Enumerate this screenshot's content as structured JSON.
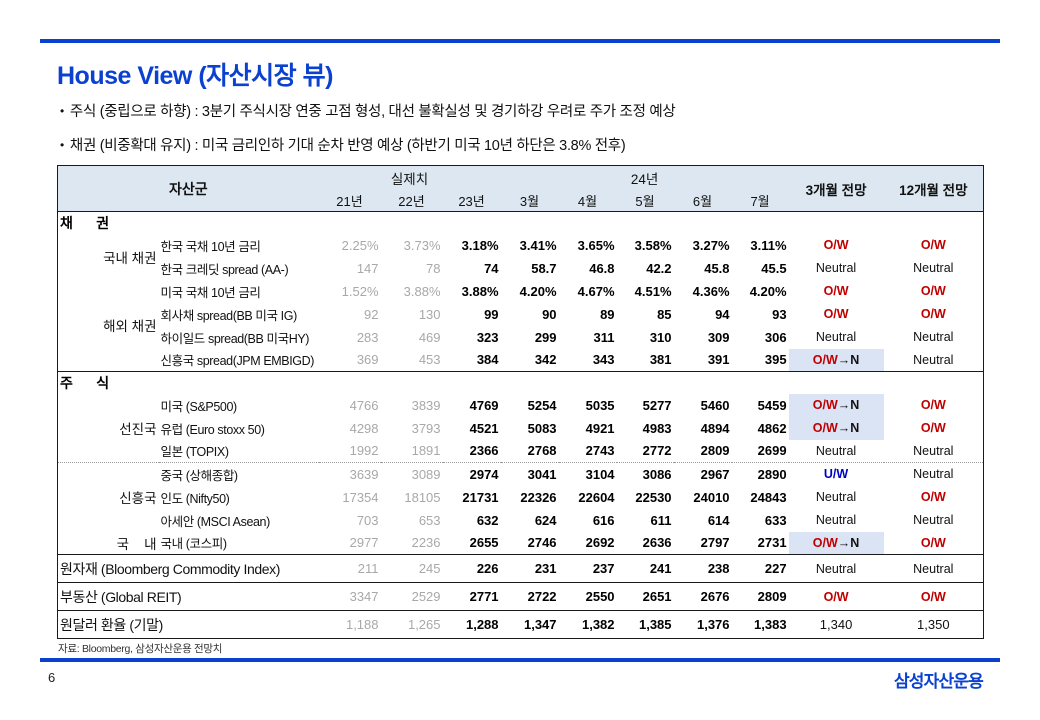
{
  "page": {
    "title": "House View (자산시장 뷰)",
    "bullets": [
      "주식 (중립으로 하향) : 3분기 주식시장 연중 고점 형성, 대선 불확실성 및 경기하강 우려로 주가 조정 예상",
      "채권 (비중확대 유지) : 미국 금리인하 기대 순차 반영 예상 (하반기 미국 10년 하단은 3.8% 전후)"
    ],
    "source_note": "자료: Bloomberg, 삼성자산운용 전망치",
    "page_number": "6",
    "logo_text": "삼성자산운용"
  },
  "colors": {
    "accent": "#0a41d0",
    "overweight_red": "#c00000",
    "underweight_blue": "#0000c8",
    "highlight_bg": "#dbe4f4",
    "header_bg": "#dde7f1",
    "past_value_gray": "#a8a8a8"
  },
  "table": {
    "header": {
      "asset_group": "자산군",
      "actual": "실제치",
      "actual_years": [
        "21년",
        "22년",
        "23년"
      ],
      "year24": "24년",
      "months": [
        "3월",
        "4월",
        "5월",
        "6월",
        "7월"
      ],
      "outlook_3m": "3개월 전망",
      "outlook_12m": "12개월 전망"
    },
    "rows": [
      {
        "type": "section",
        "label": "채      권"
      },
      {
        "type": "data",
        "group": "국내 채권",
        "group_span": 2,
        "asset": "한국 국채 10년 금리",
        "values": [
          "2.25%",
          "3.73%",
          "3.18%",
          "3.41%",
          "3.65%",
          "3.58%",
          "3.27%",
          "3.11%"
        ],
        "o3": {
          "text": "O/W",
          "style": "ow"
        },
        "o12": {
          "text": "O/W",
          "style": "ow"
        }
      },
      {
        "type": "data",
        "asset": "한국 크레딧 spread (AA-)",
        "values": [
          "147",
          "78",
          "74",
          "58.7",
          "46.8",
          "42.2",
          "45.8",
          "45.5"
        ],
        "o3": {
          "text": "Neutral",
          "style": "neutral"
        },
        "o12": {
          "text": "Neutral",
          "style": "neutral"
        }
      },
      {
        "type": "data",
        "group": "해외 채권",
        "group_span": 4,
        "asset": "미국 국채 10년 금리",
        "values": [
          "1.52%",
          "3.88%",
          "3.88%",
          "4.20%",
          "4.67%",
          "4.51%",
          "4.36%",
          "4.20%"
        ],
        "o3": {
          "text": "O/W",
          "style": "ow"
        },
        "o12": {
          "text": "O/W",
          "style": "ow"
        }
      },
      {
        "type": "data",
        "asset": "회사채 spread(BB 미국 IG)",
        "values": [
          "92",
          "130",
          "99",
          "90",
          "89",
          "85",
          "94",
          "93"
        ],
        "o3": {
          "text": "O/W",
          "style": "ow"
        },
        "o12": {
          "text": "O/W",
          "style": "ow"
        }
      },
      {
        "type": "data",
        "asset": "하이일드 spread(BB 미국HY)",
        "values": [
          "283",
          "469",
          "323",
          "299",
          "311",
          "310",
          "309",
          "306"
        ],
        "o3": {
          "text": "Neutral",
          "style": "neutral"
        },
        "o12": {
          "text": "Neutral",
          "style": "neutral"
        }
      },
      {
        "type": "data",
        "asset": "신흥국 spread(JPM EMBIGD)",
        "values": [
          "369",
          "453",
          "384",
          "342",
          "343",
          "381",
          "391",
          "395"
        ],
        "o3": {
          "text": "O/W→N",
          "style": "own"
        },
        "o12": {
          "text": "Neutral",
          "style": "neutral"
        }
      },
      {
        "type": "section",
        "label": "주      식"
      },
      {
        "type": "data",
        "group": "선진국",
        "group_span": 3,
        "asset": "미국 (S&P500)",
        "values": [
          "4766",
          "3839",
          "4769",
          "5254",
          "5035",
          "5277",
          "5460",
          "5459"
        ],
        "o3": {
          "text": "O/W→N",
          "style": "own"
        },
        "o12": {
          "text": "O/W",
          "style": "ow"
        }
      },
      {
        "type": "data",
        "asset": "유럽 (Euro stoxx 50)",
        "values": [
          "4298",
          "3793",
          "4521",
          "5083",
          "4921",
          "4983",
          "4894",
          "4862"
        ],
        "o3": {
          "text": "O/W→N",
          "style": "own"
        },
        "o12": {
          "text": "O/W",
          "style": "ow"
        }
      },
      {
        "type": "data",
        "asset": "일본 (TOPIX)",
        "values": [
          "1992",
          "1891",
          "2366",
          "2768",
          "2743",
          "2772",
          "2809",
          "2699"
        ],
        "o3": {
          "text": "Neutral",
          "style": "neutral"
        },
        "o12": {
          "text": "Neutral",
          "style": "neutral"
        }
      },
      {
        "type": "data",
        "group": "신흥국",
        "group_span": 3,
        "dotted_top": true,
        "asset": "중국 (상해종합)",
        "values": [
          "3639",
          "3089",
          "2974",
          "3041",
          "3104",
          "3086",
          "2967",
          "2890"
        ],
        "o3": {
          "text": "U/W",
          "style": "uw"
        },
        "o12": {
          "text": "Neutral",
          "style": "neutral"
        }
      },
      {
        "type": "data",
        "asset": "인도 (Nifty50)",
        "values": [
          "17354",
          "18105",
          "21731",
          "22326",
          "22604",
          "22530",
          "24010",
          "24843"
        ],
        "o3": {
          "text": "Neutral",
          "style": "neutral"
        },
        "o12": {
          "text": "O/W",
          "style": "ow"
        }
      },
      {
        "type": "data",
        "asset": "아세안 (MSCI Asean)",
        "values": [
          "703",
          "653",
          "632",
          "624",
          "616",
          "611",
          "614",
          "633"
        ],
        "o3": {
          "text": "Neutral",
          "style": "neutral"
        },
        "o12": {
          "text": "Neutral",
          "style": "neutral"
        }
      },
      {
        "type": "data",
        "group": "국    내",
        "group_span": 1,
        "asset": "국내 (코스피)",
        "values": [
          "2977",
          "2236",
          "2655",
          "2746",
          "2692",
          "2636",
          "2797",
          "2731"
        ],
        "o3": {
          "text": "O/W→N",
          "style": "own"
        },
        "o12": {
          "text": "O/W",
          "style": "ow"
        }
      },
      {
        "type": "full",
        "label": "원자재 (Bloomberg Commodity Index)",
        "values": [
          "211",
          "245",
          "226",
          "231",
          "237",
          "241",
          "238",
          "227"
        ],
        "o3": {
          "text": "Neutral",
          "style": "neutral"
        },
        "o12": {
          "text": "Neutral",
          "style": "neutral"
        }
      },
      {
        "type": "full",
        "label": "부동산 (Global REIT)",
        "values": [
          "3347",
          "2529",
          "2771",
          "2722",
          "2550",
          "2651",
          "2676",
          "2809"
        ],
        "o3": {
          "text": "O/W",
          "style": "ow"
        },
        "o12": {
          "text": "O/W",
          "style": "ow"
        }
      },
      {
        "type": "full",
        "label": "원달러 환율 (기말)",
        "values": [
          "1,188",
          "1,265",
          "1,288",
          "1,347",
          "1,382",
          "1,385",
          "1,376",
          "1,383"
        ],
        "o3": {
          "text": "1,340",
          "style": "val"
        },
        "o12": {
          "text": "1,350",
          "style": "val"
        }
      }
    ]
  }
}
